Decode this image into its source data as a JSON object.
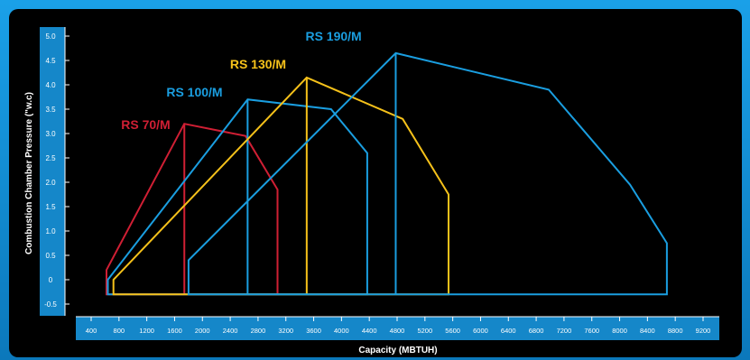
{
  "chart_data": {
    "type": "area",
    "title": "",
    "xlabel": "Capacity (MBTUH)",
    "ylabel": "Combustion Chamber Pressure (\"w.c)",
    "xlim": [
      400,
      9200
    ],
    "ylim": [
      -0.5,
      5.0
    ],
    "x_ticks": [
      400,
      800,
      1200,
      1600,
      2000,
      2400,
      2800,
      3200,
      3600,
      4000,
      4400,
      4800,
      5200,
      5600,
      6000,
      6400,
      6800,
      7200,
      7600,
      8000,
      8400,
      8800,
      9200
    ],
    "y_ticks": [
      "5.0",
      "4.5",
      "4.0",
      "3.5",
      "3.0",
      "2.5",
      "2.0",
      "1.5",
      "1.0",
      "0.5",
      "0",
      "-0.5"
    ],
    "y_tick_values": [
      5.0,
      4.5,
      4.0,
      3.5,
      3.0,
      2.5,
      2.0,
      1.5,
      1.0,
      0.5,
      0,
      -0.5
    ],
    "grid": false,
    "colors": {
      "background": "#000000",
      "frame": "#0e87cf",
      "axis_band": "#1587c9",
      "text": "#ffffff"
    },
    "series": [
      {
        "name": "RS 70/M",
        "color": "#d01f34",
        "points": [
          [
            620,
            -0.3
          ],
          [
            620,
            0.2
          ],
          [
            1740,
            3.2
          ],
          [
            2620,
            2.95
          ],
          [
            3080,
            1.85
          ],
          [
            3080,
            -0.3
          ]
        ],
        "min_output_line": [
          [
            1740,
            -0.3
          ],
          [
            1740,
            3.2
          ]
        ]
      },
      {
        "name": "RS 100/M",
        "color": "#1a9ee0",
        "points": [
          [
            640,
            -0.3
          ],
          [
            640,
            0.0
          ],
          [
            2650,
            3.7
          ],
          [
            3850,
            3.5
          ],
          [
            4370,
            2.6
          ],
          [
            4370,
            -0.3
          ]
        ],
        "min_output_line": [
          [
            2650,
            -0.3
          ],
          [
            2650,
            3.7
          ]
        ]
      },
      {
        "name": "RS 130/M",
        "color": "#f5c11a",
        "points": [
          [
            720,
            -0.3
          ],
          [
            720,
            0.0
          ],
          [
            3500,
            4.15
          ],
          [
            4880,
            3.3
          ],
          [
            5540,
            1.75
          ],
          [
            5540,
            -0.3
          ]
        ],
        "min_output_line": [
          [
            3500,
            -0.3
          ],
          [
            3500,
            4.15
          ]
        ]
      },
      {
        "name": "RS 190/M",
        "color": "#1a9ee0",
        "points": [
          [
            1800,
            -0.3
          ],
          [
            1800,
            0.4
          ],
          [
            4780,
            4.65
          ],
          [
            6980,
            3.9
          ],
          [
            8150,
            1.95
          ],
          [
            8680,
            0.75
          ],
          [
            8680,
            -0.3
          ]
        ],
        "min_output_line": [
          [
            4780,
            -0.3
          ],
          [
            4780,
            4.65
          ]
        ]
      }
    ]
  }
}
